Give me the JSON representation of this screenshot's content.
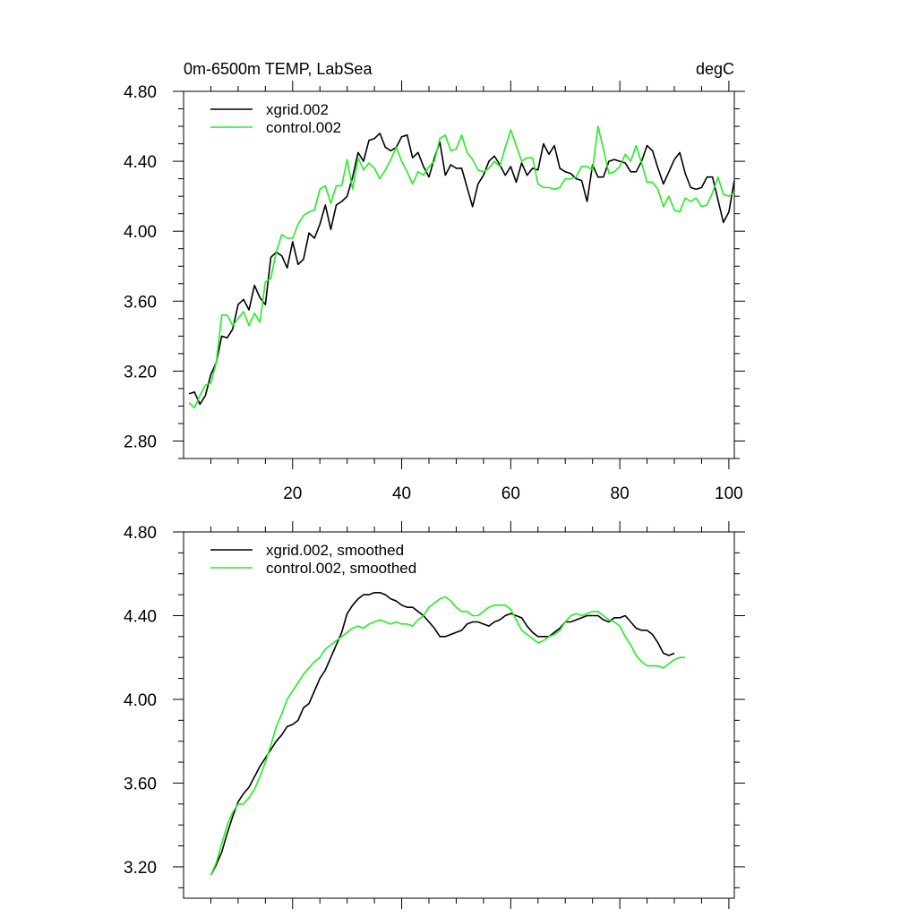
{
  "figure": {
    "title_left": "0m-6500m TEMP, LabSea",
    "title_right": "degC"
  },
  "colors": {
    "xgrid": "#000000",
    "control": "#22ee22",
    "axis": "#000000",
    "background": "#ffffff"
  },
  "chart_data": [
    {
      "type": "line",
      "title": "0m-6500m TEMP, LabSea",
      "units": "degC",
      "xlabel": "",
      "ylabel": "",
      "xlim": [
        0,
        101
      ],
      "ylim": [
        2.7,
        4.8
      ],
      "yticks": [
        2.8,
        3.2,
        3.6,
        4.0,
        4.4,
        4.8
      ],
      "ytick_labels": [
        "2.80",
        "3.20",
        "3.60",
        "4.00",
        "4.40",
        "4.80"
      ],
      "xticks": [
        20,
        40,
        60,
        80,
        100
      ],
      "xtick_labels": [
        "20",
        "40",
        "60",
        "80",
        "100"
      ],
      "legend_position": "top-left",
      "x_start": 1,
      "series": [
        {
          "name": "xgrid.002",
          "color": "#000000",
          "values": [
            3.07,
            3.08,
            3.01,
            3.06,
            3.18,
            3.25,
            3.4,
            3.39,
            3.44,
            3.58,
            3.61,
            3.55,
            3.69,
            3.62,
            3.58,
            3.85,
            3.88,
            3.86,
            3.79,
            3.94,
            3.81,
            3.84,
            3.99,
            3.96,
            4.04,
            4.15,
            4.01,
            4.15,
            4.17,
            4.2,
            4.31,
            4.45,
            4.4,
            4.52,
            4.53,
            4.56,
            4.48,
            4.46,
            4.48,
            4.54,
            4.55,
            4.42,
            4.45,
            4.37,
            4.31,
            4.42,
            4.51,
            4.32,
            4.38,
            4.36,
            4.36,
            4.25,
            4.14,
            4.27,
            4.32,
            4.4,
            4.43,
            4.38,
            4.32,
            4.37,
            4.28,
            4.39,
            4.32,
            4.36,
            4.35,
            4.5,
            4.44,
            4.49,
            4.36,
            4.34,
            4.33,
            4.3,
            4.29,
            4.17,
            4.38,
            4.31,
            4.31,
            4.4,
            4.41,
            4.4,
            4.39,
            4.34,
            4.34,
            4.4,
            4.49,
            4.46,
            4.36,
            4.27,
            4.34,
            4.41,
            4.45,
            4.33,
            4.25,
            4.24,
            4.25,
            4.31,
            4.31,
            4.18,
            4.05,
            4.11,
            4.29
          ]
        },
        {
          "name": "control.002",
          "color": "#22ee22",
          "values": [
            3.02,
            2.99,
            3.06,
            3.12,
            3.13,
            3.25,
            3.52,
            3.52,
            3.46,
            3.5,
            3.54,
            3.46,
            3.53,
            3.48,
            3.71,
            3.73,
            3.88,
            3.98,
            3.96,
            3.96,
            4.04,
            4.09,
            4.11,
            4.12,
            4.24,
            4.26,
            4.16,
            4.26,
            4.26,
            4.41,
            4.24,
            4.42,
            4.35,
            4.39,
            4.36,
            4.3,
            4.35,
            4.41,
            4.48,
            4.4,
            4.34,
            4.27,
            4.34,
            4.32,
            4.37,
            4.4,
            4.53,
            4.55,
            4.46,
            4.47,
            4.55,
            4.45,
            4.41,
            4.35,
            4.34,
            4.36,
            4.4,
            4.37,
            4.48,
            4.58,
            4.49,
            4.4,
            4.42,
            4.42,
            4.27,
            4.25,
            4.25,
            4.24,
            4.25,
            4.3,
            4.3,
            4.31,
            4.37,
            4.37,
            4.35,
            4.6,
            4.47,
            4.33,
            4.34,
            4.37,
            4.44,
            4.4,
            4.49,
            4.39,
            4.28,
            4.28,
            4.24,
            4.14,
            4.2,
            4.12,
            4.11,
            4.19,
            4.17,
            4.19,
            4.14,
            4.15,
            4.22,
            4.31,
            4.21,
            4.2,
            4.22
          ]
        }
      ]
    },
    {
      "type": "line",
      "title": "",
      "xlabel": "",
      "ylabel": "",
      "xlim": [
        0,
        101
      ],
      "ylim": [
        3.05,
        4.8
      ],
      "yticks": [
        3.2,
        3.6,
        4.0,
        4.4,
        4.8
      ],
      "ytick_labels": [
        "3.20",
        "3.60",
        "4.00",
        "4.40",
        "4.80"
      ],
      "xticks": [
        20,
        40,
        60,
        80,
        100
      ],
      "xtick_labels": [],
      "legend_position": "top-left",
      "x_start": 5,
      "series": [
        {
          "name": "xgrid.002, smoothed",
          "color": "#000000",
          "values": [
            3.16,
            3.21,
            3.27,
            3.36,
            3.44,
            3.51,
            3.55,
            3.58,
            3.63,
            3.68,
            3.72,
            3.76,
            3.8,
            3.83,
            3.87,
            3.88,
            3.9,
            3.96,
            3.98,
            4.04,
            4.1,
            4.14,
            4.2,
            4.26,
            4.32,
            4.41,
            4.45,
            4.48,
            4.5,
            4.5,
            4.51,
            4.51,
            4.5,
            4.48,
            4.47,
            4.45,
            4.44,
            4.44,
            4.42,
            4.4,
            4.37,
            4.34,
            4.3,
            4.3,
            4.31,
            4.32,
            4.33,
            4.36,
            4.37,
            4.37,
            4.36,
            4.35,
            4.37,
            4.38,
            4.4,
            4.41,
            4.4,
            4.39,
            4.35,
            4.32,
            4.3,
            4.3,
            4.3,
            4.32,
            4.34,
            4.37,
            4.37,
            4.38,
            4.39,
            4.4,
            4.4,
            4.4,
            4.38,
            4.37,
            4.39,
            4.39,
            4.4,
            4.37,
            4.34,
            4.33,
            4.33,
            4.31,
            4.27,
            4.22,
            4.21,
            4.22
          ]
        },
        {
          "name": "control.002, smoothed",
          "color": "#22ee22",
          "values": [
            3.16,
            3.22,
            3.31,
            3.4,
            3.46,
            3.5,
            3.5,
            3.53,
            3.57,
            3.63,
            3.7,
            3.78,
            3.87,
            3.93,
            4.0,
            4.04,
            4.08,
            4.12,
            4.15,
            4.18,
            4.2,
            4.24,
            4.26,
            4.28,
            4.3,
            4.32,
            4.34,
            4.35,
            4.34,
            4.36,
            4.37,
            4.38,
            4.37,
            4.36,
            4.37,
            4.36,
            4.36,
            4.35,
            4.38,
            4.4,
            4.44,
            4.46,
            4.48,
            4.49,
            4.47,
            4.44,
            4.42,
            4.42,
            4.4,
            4.4,
            4.42,
            4.44,
            4.45,
            4.45,
            4.45,
            4.43,
            4.38,
            4.33,
            4.31,
            4.29,
            4.27,
            4.28,
            4.3,
            4.31,
            4.33,
            4.37,
            4.4,
            4.41,
            4.4,
            4.41,
            4.42,
            4.42,
            4.4,
            4.38,
            4.37,
            4.35,
            4.3,
            4.26,
            4.21,
            4.18,
            4.16,
            4.16,
            4.16,
            4.15,
            4.17,
            4.19,
            4.2,
            4.2
          ]
        }
      ]
    }
  ]
}
